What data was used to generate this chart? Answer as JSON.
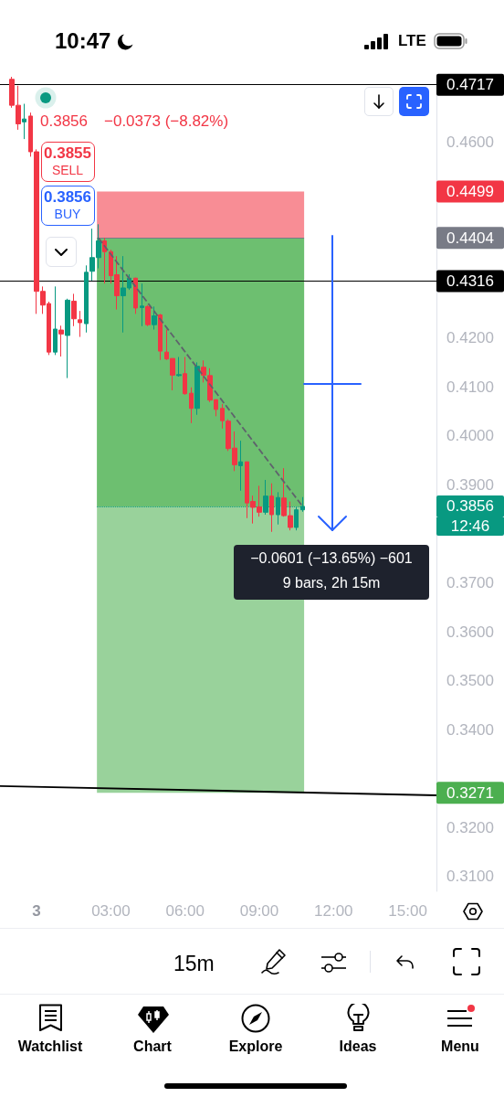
{
  "chart_data": {
    "type": "candlestick",
    "x": [
      -1,
      -0.75,
      -0.5,
      -0.25,
      0,
      0.25,
      0.5,
      0.75,
      1,
      1.25,
      1.5,
      1.75,
      2,
      2.25,
      2.5,
      2.75,
      3,
      3.25,
      3.5,
      3.75,
      4,
      4.25,
      4.5,
      4.75,
      5,
      5.25,
      5.5,
      5.75,
      6,
      6.25,
      6.5,
      6.75,
      7,
      7.25,
      7.5,
      7.75,
      8,
      8.25,
      8.5,
      8.75,
      9,
      9.25,
      9.5,
      9.75,
      10,
      10.25,
      10.5,
      10.75
    ],
    "ohlc": [
      [
        0.4728,
        0.4733,
        0.467,
        0.4675
      ],
      [
        0.4675,
        0.4715,
        0.4625,
        0.4637
      ],
      [
        0.4641,
        0.4678,
        0.4606,
        0.4647
      ],
      [
        0.4653,
        0.466,
        0.457,
        0.458
      ],
      [
        0.458,
        0.4585,
        0.4249,
        0.4295
      ],
      [
        0.4295,
        0.4305,
        0.4249,
        0.4267
      ],
      [
        0.427,
        0.4274,
        0.4165,
        0.4171
      ],
      [
        0.4171,
        0.4305,
        0.4165,
        0.4218
      ],
      [
        0.4216,
        0.4225,
        0.4162,
        0.4208
      ],
      [
        0.4205,
        0.428,
        0.4118,
        0.4277
      ],
      [
        0.4275,
        0.429,
        0.4224,
        0.4239
      ],
      [
        0.4237,
        0.4255,
        0.4202,
        0.4231
      ],
      [
        0.4229,
        0.4348,
        0.4211,
        0.4334
      ],
      [
        0.4336,
        0.4423,
        0.4317,
        0.4364
      ],
      [
        0.4364,
        0.4432,
        0.4342,
        0.4398
      ],
      [
        0.4398,
        0.4404,
        0.4311,
        0.4376
      ],
      [
        0.4376,
        0.438,
        0.4311,
        0.4327
      ],
      [
        0.4329,
        0.4367,
        0.4258,
        0.4286
      ],
      [
        0.4286,
        0.4367,
        0.4211,
        0.4302
      ],
      [
        0.4302,
        0.433,
        0.4298,
        0.4322
      ],
      [
        0.4322,
        0.4323,
        0.4249,
        0.4261
      ],
      [
        0.4262,
        0.4311,
        0.4224,
        0.4265
      ],
      [
        0.4264,
        0.4267,
        0.4224,
        0.4227
      ],
      [
        0.4227,
        0.4264,
        0.4217,
        0.4245
      ],
      [
        0.4247,
        0.4249,
        0.4155,
        0.4173
      ],
      [
        0.4171,
        0.4217,
        0.4155,
        0.4157
      ],
      [
        0.4158,
        0.4158,
        0.4093,
        0.4124
      ],
      [
        0.4123,
        0.4161,
        0.4121,
        0.4125
      ],
      [
        0.4127,
        0.4161,
        0.4084,
        0.4086
      ],
      [
        0.4087,
        0.4099,
        0.4026,
        0.4056
      ],
      [
        0.4056,
        0.415,
        0.4043,
        0.4142
      ],
      [
        0.414,
        0.4154,
        0.4109,
        0.4124
      ],
      [
        0.4123,
        0.4138,
        0.4069,
        0.4073
      ],
      [
        0.4074,
        0.4074,
        0.404,
        0.4054
      ],
      [
        0.4056,
        0.4065,
        0.4015,
        0.4031
      ],
      [
        0.403,
        0.4034,
        0.3969,
        0.3974
      ],
      [
        0.3975,
        0.4009,
        0.3928,
        0.3941
      ],
      [
        0.3939,
        0.399,
        0.3888,
        0.3947
      ],
      [
        0.3947,
        0.3947,
        0.3832,
        0.3863
      ],
      [
        0.3866,
        0.3878,
        0.3821,
        0.3854
      ],
      [
        0.3855,
        0.3898,
        0.3835,
        0.3844
      ],
      [
        0.3844,
        0.391,
        0.3839,
        0.3877
      ],
      [
        0.3877,
        0.3903,
        0.3804,
        0.3839
      ],
      [
        0.3839,
        0.3885,
        0.3819,
        0.3874
      ],
      [
        0.3873,
        0.3934,
        0.3835,
        0.3837
      ],
      [
        0.3837,
        0.3866,
        0.3807,
        0.3813
      ],
      [
        0.3813,
        0.3854,
        0.3807,
        0.3849
      ],
      [
        0.3849,
        0.3875,
        0.3845,
        0.3856
      ]
    ],
    "xlim": [
      -1.48,
      16.16
    ],
    "xticks": [
      {
        "value": 3,
        "label": "03:00"
      },
      {
        "value": 6,
        "label": "06:00"
      },
      {
        "value": 9,
        "label": "09:00"
      },
      {
        "value": 12,
        "label": "12:00"
      },
      {
        "value": 15,
        "label": "15:00"
      }
    ],
    "ylim": [
      0.307,
      0.4735
    ],
    "yticks": [
      {
        "value": 0.31,
        "label": "0.3100"
      },
      {
        "value": 0.32,
        "label": "0.3200"
      },
      {
        "value": 0.3271,
        "label": "0.3271"
      },
      {
        "value": 0.34,
        "label": "0.3400"
      },
      {
        "value": 0.35,
        "label": "0.3500"
      },
      {
        "value": 0.36,
        "label": "0.3600"
      },
      {
        "value": 0.37,
        "label": "0.3700"
      },
      {
        "value": 0.3856,
        "label": "0.3856"
      },
      {
        "value": 0.39,
        "label": "0.3900"
      },
      {
        "value": 0.4,
        "label": "0.4000"
      },
      {
        "value": 0.41,
        "label": "0.4100"
      },
      {
        "value": 0.42,
        "label": "0.4200"
      },
      {
        "value": 0.4316,
        "label": "0.4316"
      },
      {
        "value": 0.4404,
        "label": "0.4404"
      },
      {
        "value": 0.4499,
        "label": "0.4499"
      },
      {
        "value": 0.46,
        "label": "0.4600"
      },
      {
        "value": 0.4717,
        "label": "0.4717"
      }
    ],
    "series": [
      {
        "type": "line",
        "x": [
          2.5,
          10.75
        ],
        "values": [
          0.4404,
          0.3856
        ],
        "color": "#5f626c",
        "line_style": "dashed"
      },
      {
        "type": "line",
        "x": [
          -1.48,
          16.16
        ],
        "values": [
          0.3285,
          0.3266
        ],
        "color": "#000000"
      }
    ],
    "marker": "none",
    "ref_lines": [
      {
        "axis": "y",
        "value": 0.4717,
        "color": "#000000"
      },
      {
        "axis": "y",
        "value": 0.4404,
        "color": "#787b86"
      },
      {
        "axis": "y",
        "value": 0.4316,
        "color": "#000000"
      },
      {
        "axis": "y",
        "value": 0.3856,
        "color": "#089981",
        "line_style": "dotted"
      }
    ],
    "bands": [
      {
        "axis": "y",
        "from": 0.4404,
        "to": 0.4499,
        "color": "#f23645"
      },
      {
        "axis": "y",
        "from": 0.4404,
        "to": 0.3271,
        "color": "#4caf50"
      },
      {
        "axis": "y",
        "from": 0.4404,
        "to": 0.3856,
        "color": "#4caf50"
      }
    ],
    "annotations": [
      "10:47",
      "LTE",
      "0.3856",
      "−0.0373 (−8.82%)",
      "0.3855",
      "SELL",
      "0.3856",
      "BUY",
      "−0.0601 (−13.65%) −601",
      "9 bars, 2h 15m",
      "12:46",
      "15m",
      "Watchlist",
      "Chart",
      "Explore",
      "Ideas",
      "Menu",
      "3"
    ]
  }
}
